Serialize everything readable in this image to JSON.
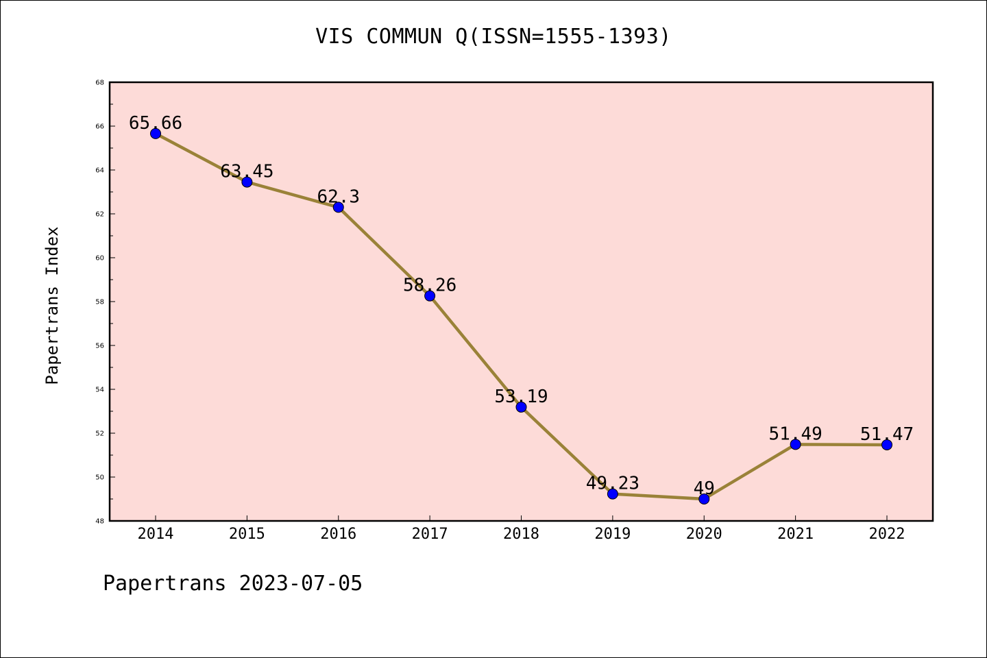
{
  "colors": {
    "plot_background": "#fddbd8",
    "line": "#9a8238",
    "marker": "#0000ff",
    "axis": "#000000"
  },
  "footer_text": "Papertrans 2023-07-05",
  "chart_data": {
    "type": "line",
    "title": "VIS COMMUN Q(ISSN=1555-1393)",
    "xlabel": "",
    "ylabel": "Papertrans Index",
    "ylim": [
      48,
      68
    ],
    "yticks": [
      48,
      50,
      52,
      54,
      56,
      58,
      60,
      62,
      64,
      66,
      68
    ],
    "categories": [
      "2014",
      "2015",
      "2016",
      "2017",
      "2018",
      "2019",
      "2020",
      "2021",
      "2022"
    ],
    "series": [
      {
        "values": [
          65.66,
          63.45,
          62.3,
          58.26,
          53.19,
          49.23,
          49,
          51.49,
          51.47
        ],
        "labels": [
          "65.66",
          "63.45",
          "62.3",
          "58.26",
          "53.19",
          "49.23",
          "49",
          "51.49",
          "51.47"
        ]
      }
    ],
    "grid": false,
    "legend": "none"
  }
}
